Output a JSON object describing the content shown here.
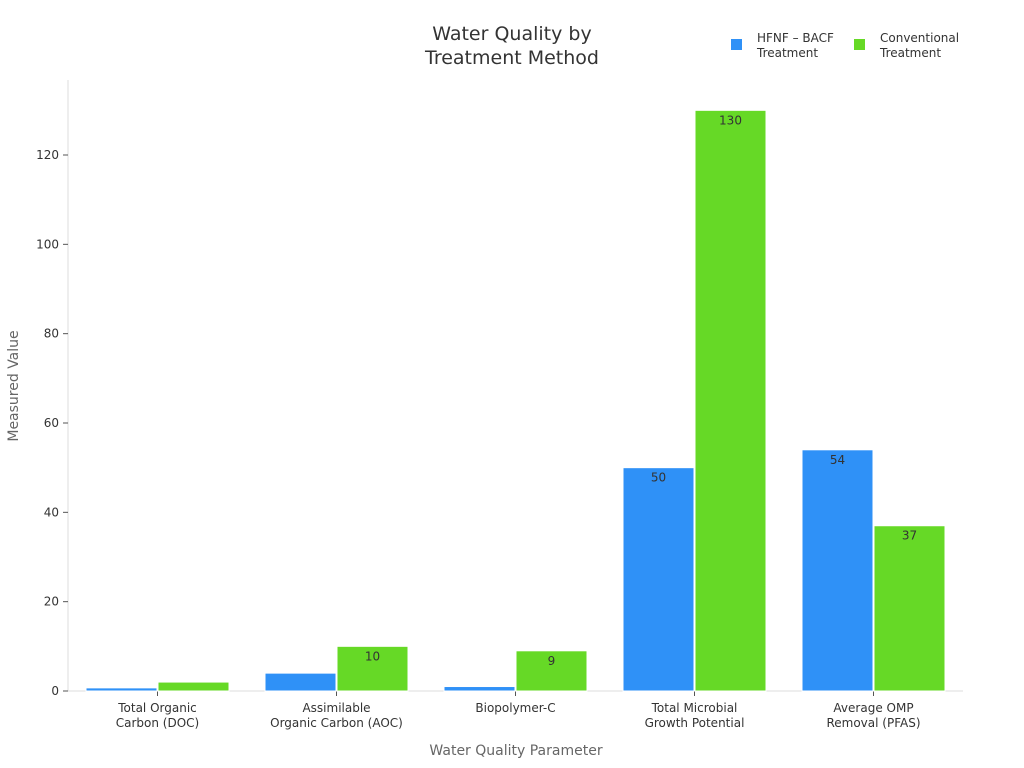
{
  "chart_data": {
    "type": "bar",
    "title": "Water Quality by\nTreatment Method",
    "xlabel": "Water Quality Parameter",
    "ylabel": "Measured Value",
    "categories": [
      "Total Organic\nCarbon (DOC)",
      "Assimilable\nOrganic Carbon (AOC)",
      "Biopolymer-C",
      "Total Microbial\nGrowth Potential",
      "Average OMP\nRemoval (PFAS)"
    ],
    "series": [
      {
        "name": "HFNF – BACF\nTreatment",
        "color": "#2f91f7",
        "values": [
          0.7,
          4,
          1,
          50,
          54
        ]
      },
      {
        "name": "Conventional\nTreatment",
        "color": "#66d926",
        "values": [
          2,
          10,
          9,
          130,
          37
        ]
      }
    ],
    "ylim": [
      0,
      137
    ],
    "yticks": [
      0,
      20,
      40,
      60,
      80,
      100,
      120
    ],
    "grid": false,
    "legend": "top-right"
  }
}
